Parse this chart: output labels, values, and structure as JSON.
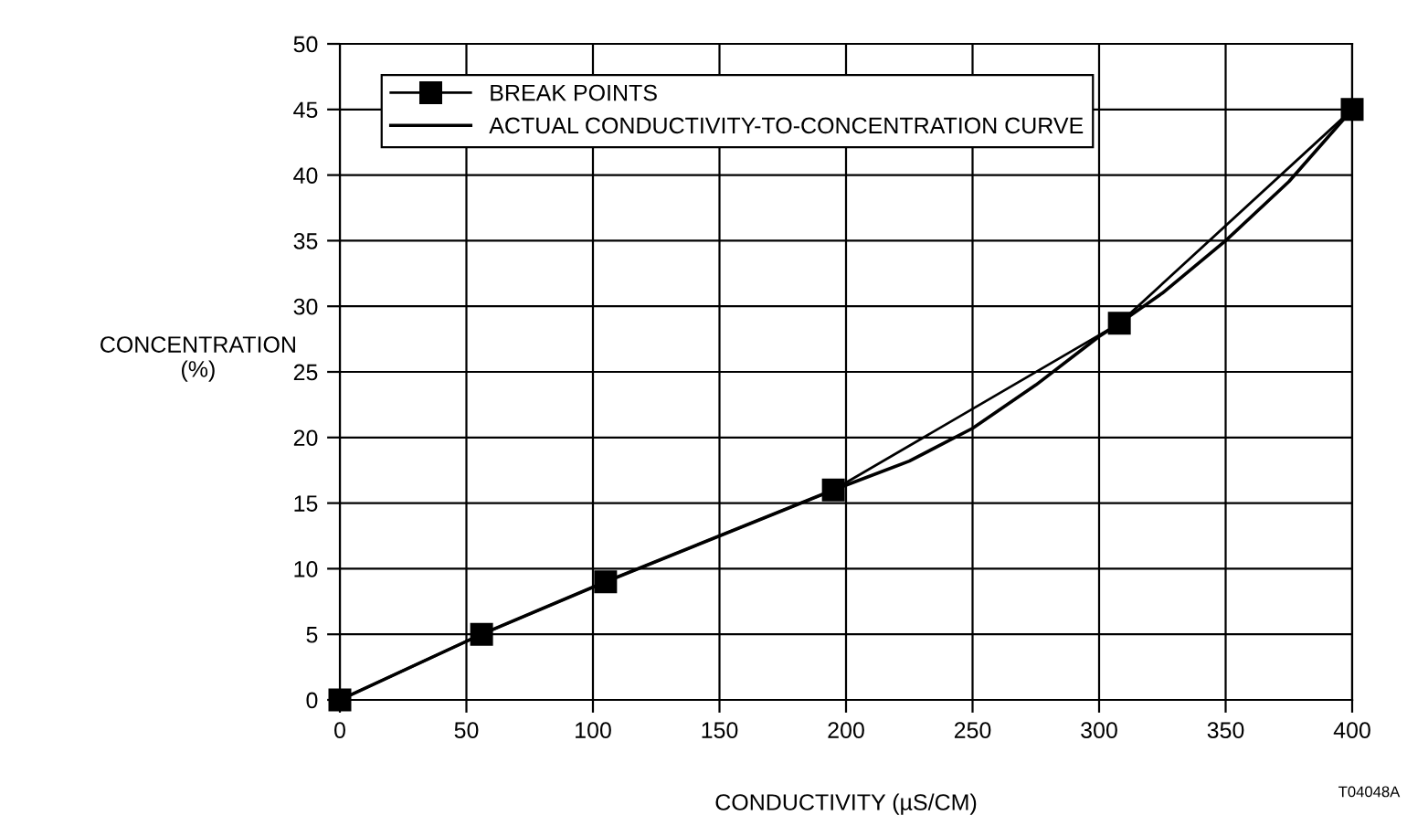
{
  "chart_data": {
    "type": "line",
    "xlabel": "CONDUCTIVITY (µS/CM)",
    "ylabel": "CONCENTRATION\n(%)",
    "series": [
      {
        "name": "BREAK POINTS",
        "color": "#000000",
        "marker": "square",
        "x": [
          0,
          56,
          105,
          195,
          308,
          400
        ],
        "values": [
          0,
          5,
          9,
          16,
          28.7,
          45
        ]
      },
      {
        "name": "ACTUAL CONDUCTIVITY-TO-CONCENTRATION CURVE",
        "color": "#000000",
        "marker": "none",
        "x": [
          0,
          56,
          105,
          150,
          195,
          225,
          250,
          275,
          300,
          308,
          325,
          350,
          375,
          400
        ],
        "values": [
          0,
          5,
          9,
          12.5,
          16,
          18.2,
          20.7,
          24,
          27.7,
          28.7,
          31,
          35,
          39.5,
          45
        ]
      }
    ],
    "xlim": [
      0,
      400
    ],
    "xticks": [
      0,
      50,
      100,
      150,
      200,
      250,
      300,
      350,
      400
    ],
    "ylim": [
      0,
      50
    ],
    "yticks": [
      0,
      5,
      10,
      15,
      20,
      25,
      30,
      35,
      40,
      45,
      50
    ],
    "grid": true,
    "legend": "top left",
    "line_style": "solid",
    "annotations": [
      "T04048A"
    ]
  }
}
